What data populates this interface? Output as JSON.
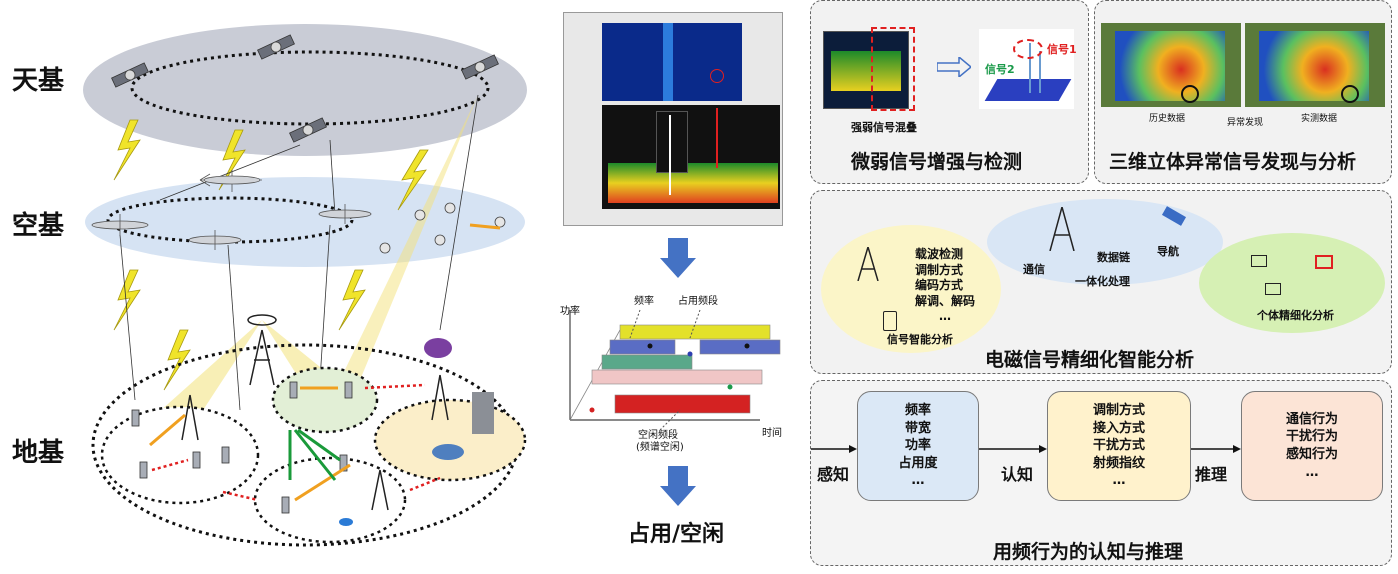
{
  "layers": {
    "space": "天基",
    "air": "空基",
    "ground": "地基"
  },
  "spectrum": {
    "occupied_label": "占用/空闲",
    "axis_power": "功率",
    "axis_time": "时间",
    "label_freq": "频率",
    "label_occupied": "占用频段",
    "label_idle_1": "空闲频段",
    "label_idle_2": "(频谱空闲)"
  },
  "panel_weak": {
    "title": "微弱信号增强与检测",
    "caption": "强弱信号混叠",
    "signal1": "信号1",
    "signal2": "信号2"
  },
  "panel_3d": {
    "title": "三维立体异常信号发现与分析",
    "caption_left": "历史数据",
    "caption_mid": "异常发现",
    "caption_right": "实测数据"
  },
  "panel_em": {
    "title": "电磁信号精细化智能分析",
    "left_items": [
      "载波检测",
      "调制方式",
      "编码方式",
      "解调、解码",
      "…"
    ],
    "left_caption": "信号智能分析",
    "comm": "通信",
    "datalink_1": "数据链",
    "datalink_2": "一体化处理",
    "nav": "导航",
    "individual": "个体精细化分析"
  },
  "panel_behavior": {
    "title": "用频行为的认知与推理",
    "perceive": "感知",
    "cognize": "认知",
    "reason": "推理",
    "box1": [
      "频率",
      "带宽",
      "功率",
      "占用度",
      "…"
    ],
    "box2": [
      "调制方式",
      "接入方式",
      "干扰方式",
      "射频指纹",
      "…"
    ],
    "box3": [
      "通信行为",
      "干扰行为",
      "感知行为",
      "…"
    ]
  },
  "colors": {
    "space_disc": "#c9ccd6",
    "air_disc": "#d6e3f3",
    "box_blue": "#dbe8f6",
    "box_yellow": "#fff2cc",
    "box_orange": "#fce4d6",
    "em_yellow": "#fbf5c8",
    "em_blue": "#d9e6f5",
    "em_green": "#d6f0b4",
    "arrow_blue": "#4472c4"
  }
}
